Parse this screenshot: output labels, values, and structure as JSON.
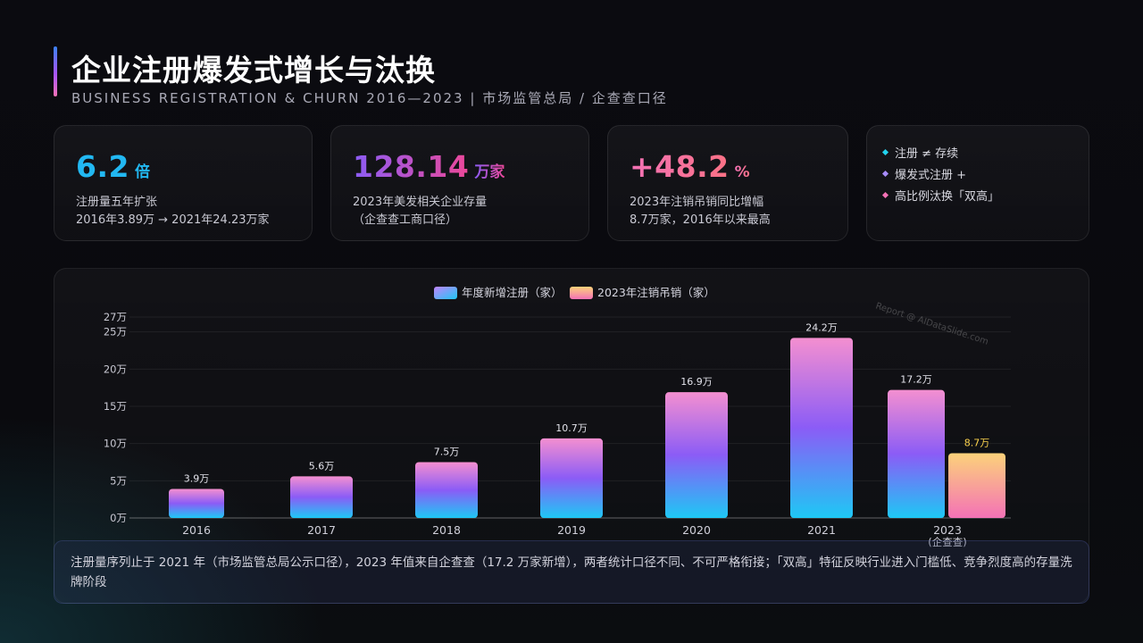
{
  "header": {
    "title": "企业注册爆发式增长与汰换",
    "subtitle": "BUSINESS REGISTRATION & CHURN 2016—2023  |  市场监管总局 / 企查查口径"
  },
  "kpis": [
    {
      "value": "6.2",
      "unit": "倍",
      "desc_line1": "注册量五年扩张",
      "desc_line2": "2016年3.89万 → 2021年24.23万家"
    },
    {
      "value": "128.14",
      "unit": "万家",
      "desc_line1": "2023年美发相关企业存量",
      "desc_line2": "（企查查工商口径）"
    },
    {
      "value": "+48.2",
      "unit": "%",
      "desc_line1": "2023年注销吊销同比增幅",
      "desc_line2": "8.7万家，2016年以来最高"
    }
  ],
  "notes": [
    {
      "text": "注册 ≠ 存续",
      "color": "#22d3ee"
    },
    {
      "text": "爆发式注册 +",
      "color": "#a78bfa"
    },
    {
      "text": "高比例汰换「双高」",
      "color": "#f472b6"
    }
  ],
  "watermark": "Report @ AIDataSlide.com",
  "footer": {
    "text": "注册量序列止于 2021 年（市场监管总局公示口径），2023 年值来自企查查（17.2 万家新增），两者统计口径不同、不可严格衔接；「双高」特征反映行业进入门槛低、竞争烈度高的存量洗牌阶段"
  },
  "chart_data": {
    "type": "bar",
    "categories": [
      "2016",
      "2017",
      "2018",
      "2019",
      "2020",
      "2021",
      "2023"
    ],
    "category_sublabels": [
      "",
      "",
      "",
      "",
      "",
      "",
      "(企查查)"
    ],
    "series": [
      {
        "name": "年度新增注册（家）",
        "values": [
          3.9,
          5.6,
          7.5,
          10.7,
          16.9,
          24.2,
          17.2
        ],
        "labels": [
          "3.9万",
          "5.6万",
          "7.5万",
          "10.7万",
          "16.9万",
          "24.2万",
          "17.2万"
        ],
        "color_top": "#f48fd0",
        "color_mid": "#8b5cf6",
        "color_bottom": "#1ec8f5"
      },
      {
        "name": "2023年注销吊销（家）",
        "values": [
          null,
          null,
          null,
          null,
          null,
          null,
          8.7
        ],
        "labels": [
          "",
          "",
          "",
          "",
          "",
          "",
          "8.7万"
        ],
        "color_top": "#fcd27a",
        "color_bottom": "#f472b6",
        "label_color": "#fcd34d"
      }
    ],
    "ylim": [
      0,
      27
    ],
    "yticks": [
      0,
      5,
      10,
      15,
      20,
      25,
      27
    ],
    "ytick_labels": [
      "0万",
      "5万",
      "10万",
      "15万",
      "20万",
      "25万",
      "27万"
    ],
    "grid": true,
    "legend_position": "top-center"
  }
}
